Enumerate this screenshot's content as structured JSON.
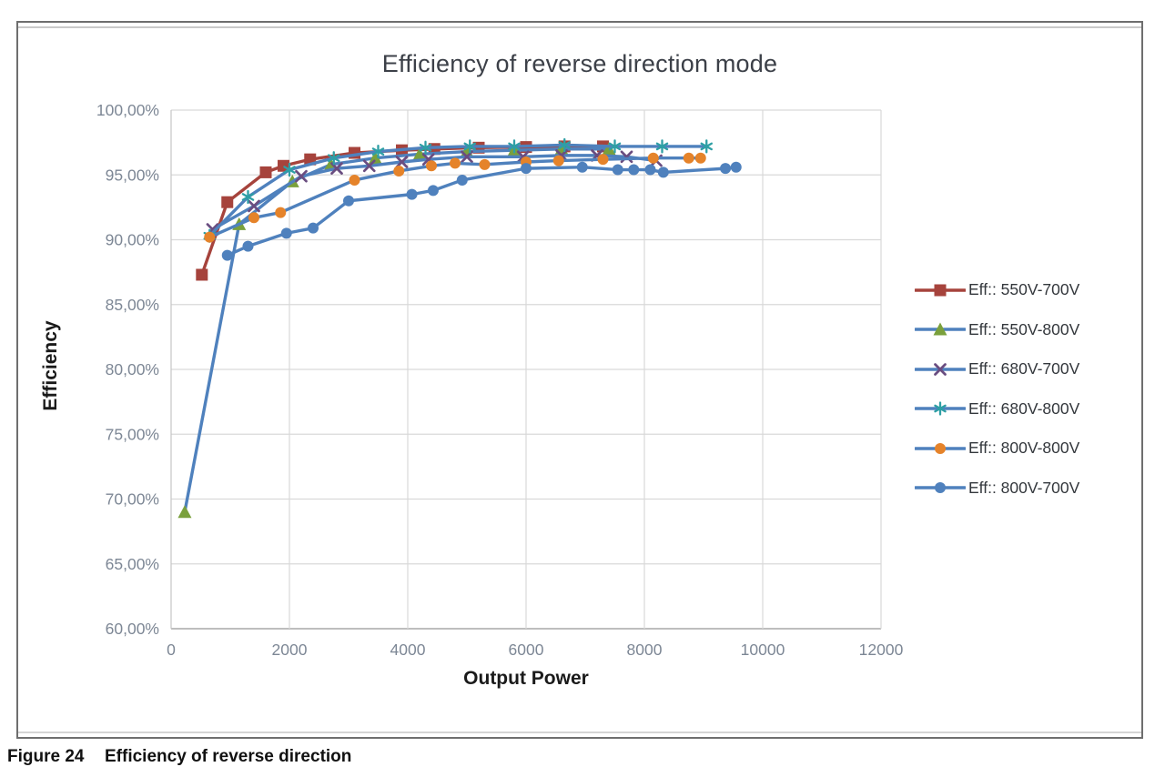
{
  "figure_caption": {
    "label": "Figure 24",
    "title": "Efficiency of reverse direction"
  },
  "chart_data": {
    "type": "line",
    "title": "Efficiency of reverse direction mode",
    "xlabel": "Output Power",
    "ylabel": "Efficiency",
    "xlim": [
      0,
      12000
    ],
    "ylim": [
      60,
      100
    ],
    "grid": true,
    "legend_position": "right",
    "x_ticks": [
      {
        "value": 0,
        "label": "0"
      },
      {
        "value": 2000,
        "label": "2000"
      },
      {
        "value": 4000,
        "label": "4000"
      },
      {
        "value": 6000,
        "label": "6000"
      },
      {
        "value": 8000,
        "label": "8000"
      },
      {
        "value": 10000,
        "label": "10000"
      },
      {
        "value": 12000,
        "label": "12000"
      }
    ],
    "y_ticks": [
      {
        "value": 100,
        "label": "100,00%"
      },
      {
        "value": 95,
        "label": "95,00%"
      },
      {
        "value": 90,
        "label": "90,00%"
      },
      {
        "value": 85,
        "label": "85,00%"
      },
      {
        "value": 80,
        "label": "80,00%"
      },
      {
        "value": 75,
        "label": "75,00%"
      },
      {
        "value": 70,
        "label": "70,00%"
      },
      {
        "value": 65,
        "label": "65,00%"
      },
      {
        "value": 60,
        "label": "60,00%"
      }
    ],
    "colors": {
      "grid": "#d9d9d9",
      "axis_left": "#c6c6c6",
      "axis_bottom": "#a8a8a8",
      "tick_text": "#7d8795",
      "axis_title_text": "#1a1a1a",
      "title_text": "#3c4048"
    },
    "series": [
      {
        "name": "Eff:: 550V-700V",
        "marker": "square",
        "marker_color": "#a6433c",
        "line_color": "#a6433c",
        "points": [
          [
            520,
            87.3
          ],
          [
            950,
            92.9
          ],
          [
            1600,
            95.2
          ],
          [
            1900,
            95.7
          ],
          [
            2350,
            96.2
          ],
          [
            3100,
            96.7
          ],
          [
            3900,
            96.9
          ],
          [
            4450,
            97.0
          ],
          [
            5200,
            97.1
          ],
          [
            6000,
            97.15
          ],
          [
            6650,
            97.2
          ],
          [
            7300,
            97.2
          ]
        ]
      },
      {
        "name": "Eff:: 550V-800V",
        "marker": "triangle",
        "marker_color": "#7aa03c",
        "line_color": "#4f81bd",
        "points": [
          [
            230,
            69.0
          ],
          [
            1150,
            91.2
          ],
          [
            2050,
            94.5
          ],
          [
            2700,
            95.8
          ],
          [
            3450,
            96.3
          ],
          [
            4200,
            96.6
          ],
          [
            5000,
            96.8
          ],
          [
            5800,
            96.9
          ],
          [
            6600,
            97.0
          ],
          [
            7400,
            97.0
          ]
        ]
      },
      {
        "name": "Eff:: 680V-700V",
        "marker": "x",
        "marker_color": "#6a4d80",
        "line_color": "#4f81bd",
        "points": [
          [
            700,
            90.8
          ],
          [
            1400,
            92.6
          ],
          [
            2200,
            94.9
          ],
          [
            2800,
            95.5
          ],
          [
            3350,
            95.7
          ],
          [
            3900,
            96.0
          ],
          [
            4350,
            96.2
          ],
          [
            5000,
            96.4
          ],
          [
            5950,
            96.4
          ],
          [
            6600,
            96.5
          ],
          [
            7200,
            96.5
          ],
          [
            7700,
            96.4
          ],
          [
            8200,
            96.1
          ]
        ]
      },
      {
        "name": "Eff:: 680V-800V",
        "marker": "asterisk",
        "marker_color": "#2e9fa5",
        "line_color": "#4f81bd",
        "points": [
          [
            650,
            90.3
          ],
          [
            1300,
            93.3
          ],
          [
            2000,
            95.4
          ],
          [
            2750,
            96.3
          ],
          [
            3500,
            96.8
          ],
          [
            4300,
            97.1
          ],
          [
            5050,
            97.2
          ],
          [
            5800,
            97.2
          ],
          [
            6650,
            97.3
          ],
          [
            7500,
            97.2
          ],
          [
            8300,
            97.2
          ],
          [
            9050,
            97.2
          ]
        ]
      },
      {
        "name": "Eff:: 800V-800V",
        "marker": "circle",
        "marker_color": "#e5832a",
        "line_color": "#4f81bd",
        "points": [
          [
            650,
            90.2
          ],
          [
            1400,
            91.7
          ],
          [
            1850,
            92.1
          ],
          [
            3100,
            94.6
          ],
          [
            3850,
            95.3
          ],
          [
            4400,
            95.7
          ],
          [
            4800,
            95.9
          ],
          [
            5300,
            95.8
          ],
          [
            6000,
            96.0
          ],
          [
            6550,
            96.1
          ],
          [
            7300,
            96.2
          ],
          [
            8150,
            96.3
          ],
          [
            8750,
            96.3
          ],
          [
            8950,
            96.3
          ]
        ]
      },
      {
        "name": "Eff:: 800V-700V",
        "marker": "circle",
        "marker_color": "#4f81bd",
        "line_color": "#4f81bd",
        "points": [
          [
            950,
            88.8
          ],
          [
            1300,
            89.5
          ],
          [
            1950,
            90.5
          ],
          [
            2400,
            90.9
          ],
          [
            3000,
            93.0
          ],
          [
            4070,
            93.5
          ],
          [
            4430,
            93.8
          ],
          [
            4920,
            94.6
          ],
          [
            6000,
            95.5
          ],
          [
            6950,
            95.6
          ],
          [
            7550,
            95.4
          ],
          [
            7820,
            95.4
          ],
          [
            8100,
            95.4
          ],
          [
            8320,
            95.2
          ],
          [
            9370,
            95.5
          ],
          [
            9550,
            95.6
          ]
        ]
      }
    ]
  }
}
